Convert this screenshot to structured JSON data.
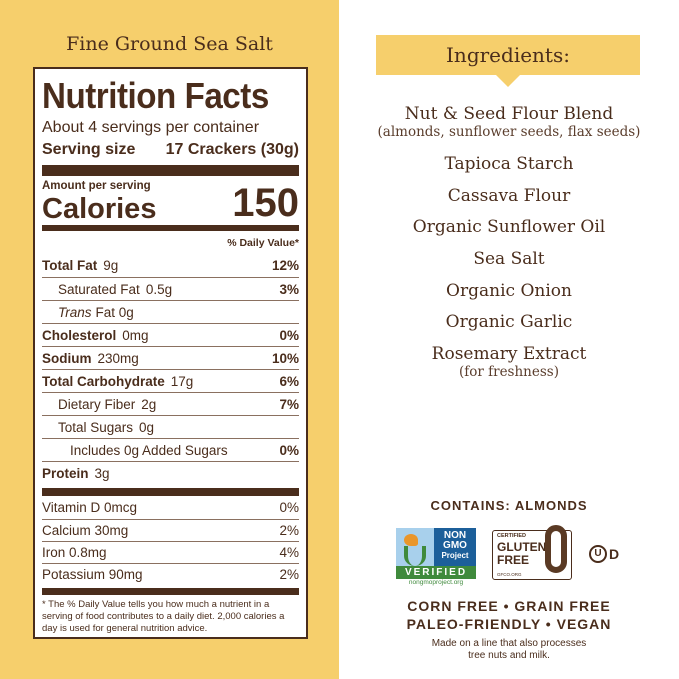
{
  "flavor": "Fine Ground Sea Salt",
  "nutrition": {
    "title": "Nutrition Facts",
    "servings": "About 4 servings per container",
    "serving_size_label": "Serving size",
    "serving_size_value": "17 Crackers (30g)",
    "amount_per_serving": "Amount per serving",
    "calories_label": "Calories",
    "calories_value": "150",
    "dv_header": "% Daily Value*",
    "rows": [
      {
        "label": "Total Fat",
        "amount": "9g",
        "dv": "12%",
        "bold": true,
        "indent": 0
      },
      {
        "label": "Saturated Fat",
        "amount": "0.5g",
        "dv": "3%",
        "bold": false,
        "indent": 1
      },
      {
        "label": "Trans",
        "label2": "Fat 0g",
        "amount": "",
        "dv": "",
        "bold": false,
        "indent": 1
      },
      {
        "label": "Cholesterol",
        "amount": "0mg",
        "dv": "0%",
        "bold": true,
        "indent": 0
      },
      {
        "label": "Sodium",
        "amount": "230mg",
        "dv": "10%",
        "bold": true,
        "indent": 0
      },
      {
        "label": "Total Carbohydrate",
        "amount": "17g",
        "dv": "6%",
        "bold": true,
        "indent": 0
      },
      {
        "label": "Dietary Fiber",
        "amount": "2g",
        "dv": "7%",
        "bold": false,
        "indent": 1
      },
      {
        "label": "Total Sugars",
        "amount": "0g",
        "dv": "",
        "bold": false,
        "indent": 1
      },
      {
        "label": "Includes 0g Added Sugars",
        "amount": "",
        "dv": "0%",
        "bold": false,
        "indent": 2
      },
      {
        "label": "Protein",
        "amount": "3g",
        "dv": "",
        "bold": true,
        "indent": 0
      }
    ],
    "vitamins": [
      {
        "label": "Vitamin D 0mcg",
        "dv": "0%"
      },
      {
        "label": "Calcium 30mg",
        "dv": "2%"
      },
      {
        "label": "Iron 0.8mg",
        "dv": "4%"
      },
      {
        "label": "Potassium 90mg",
        "dv": "2%"
      }
    ],
    "footnote": "* The % Daily Value tells you how much a nutrient in a serving of food contributes to a daily diet. 2,000 calories a day is used for general nutrition advice."
  },
  "ingredients": {
    "header": "Ingredients:",
    "items": [
      {
        "name": "Nut & Seed Flour Blend",
        "note": "(almonds, sunflower seeds, flax seeds)"
      },
      {
        "name": "Tapioca Starch"
      },
      {
        "name": "Cassava Flour"
      },
      {
        "name": "Organic Sunflower Oil"
      },
      {
        "name": "Sea Salt"
      },
      {
        "name": "Organic Onion"
      },
      {
        "name": "Organic Garlic"
      },
      {
        "name": "Rosemary Extract",
        "note": "(for freshness)"
      }
    ]
  },
  "contains": "CONTAINS: ALMONDS",
  "badges": {
    "nongmo": {
      "line1": "NON",
      "line2": "GMO",
      "line3": "Project",
      "verified": "VERIFIED",
      "url": "nongmoproject.org"
    },
    "gluten": {
      "certified": "CERTIFIED",
      "line1": "GLUTEN",
      "line2": "FREE",
      "url": "GFCO.ORG"
    },
    "kosher": "D"
  },
  "claims": [
    "CORN FREE • GRAIN FREE",
    "PALEO-FRIENDLY • VEGAN"
  ],
  "allergen_note": [
    "Made on a line that also processes",
    "tree nuts and milk."
  ],
  "colors": {
    "yellow": "#f6cf6c",
    "brown": "#4a2d1c",
    "green": "#3f8a3c",
    "blue": "#1c5f9a"
  }
}
